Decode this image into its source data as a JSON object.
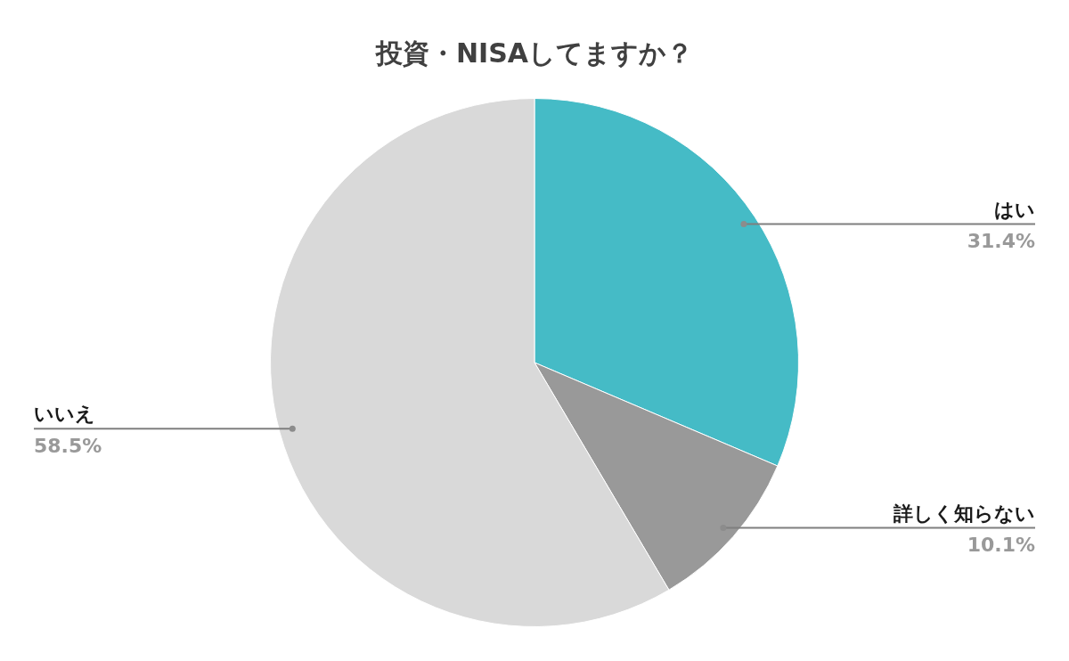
{
  "chart_data": {
    "type": "pie",
    "title": "投資・NISAしてますか？",
    "categories": [
      "はい",
      "詳しく知らない",
      "いいえ"
    ],
    "values": [
      31.4,
      10.1,
      58.5
    ],
    "value_labels": [
      "31.4%",
      "10.1%",
      "58.5%"
    ],
    "colors": [
      "#45bbc6",
      "#999999",
      "#d9d9d9"
    ],
    "legend": false
  }
}
